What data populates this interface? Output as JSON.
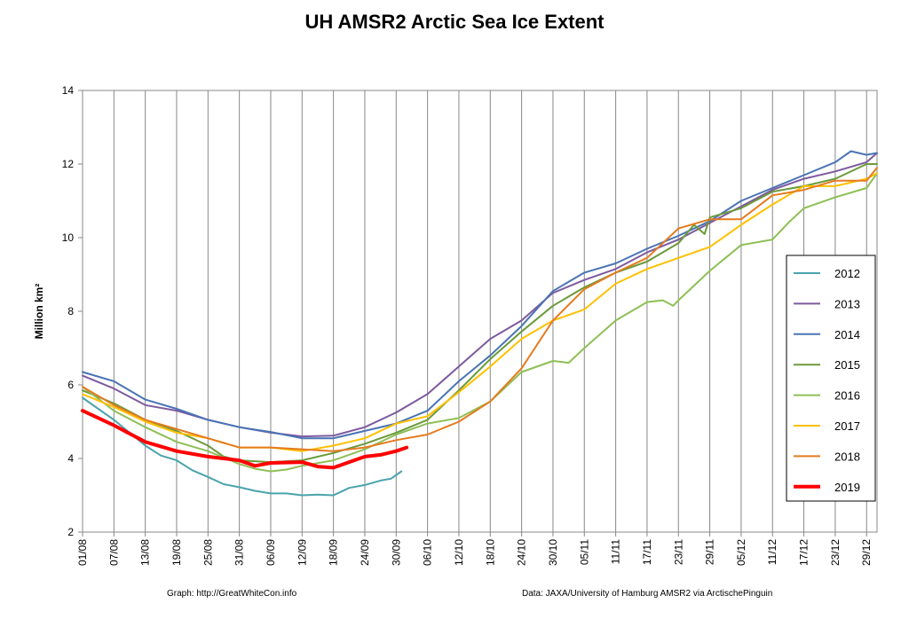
{
  "chart_data": {
    "type": "line",
    "title": "UH AMSR2 Arctic Sea Ice Extent",
    "xlabel": "",
    "ylabel": "Million km²",
    "ylim": [
      2,
      14
    ],
    "yticks": [
      2,
      4,
      6,
      8,
      10,
      12,
      14
    ],
    "x_range": [
      "01/08",
      "31/12"
    ],
    "x_ticks": [
      "01/08",
      "07/08",
      "13/08",
      "19/08",
      "25/08",
      "31/08",
      "06/09",
      "12/09",
      "18/09",
      "24/09",
      "30/09",
      "06/10",
      "12/10",
      "18/10",
      "24/10",
      "30/10",
      "05/11",
      "11/11",
      "17/11",
      "23/11",
      "29/11",
      "05/12",
      "11/12",
      "17/12",
      "23/12",
      "29/12"
    ],
    "grid": "vertical lines at each x tick",
    "legend_position": "right",
    "series": [
      {
        "name": "2012",
        "color": "#4aa3ad",
        "width": 2,
        "points": [
          [
            "01/08",
            5.65
          ],
          [
            "04/08",
            5.35
          ],
          [
            "07/08",
            5.05
          ],
          [
            "10/08",
            4.7
          ],
          [
            "13/08",
            4.35
          ],
          [
            "16/08",
            4.08
          ],
          [
            "19/08",
            3.95
          ],
          [
            "22/08",
            3.68
          ],
          [
            "25/08",
            3.5
          ],
          [
            "28/08",
            3.3
          ],
          [
            "31/08",
            3.22
          ],
          [
            "03/09",
            3.12
          ],
          [
            "06/09",
            3.05
          ],
          [
            "09/09",
            3.05
          ],
          [
            "12/09",
            3.0
          ],
          [
            "15/09",
            3.02
          ],
          [
            "18/09",
            3.0
          ],
          [
            "21/09",
            3.2
          ],
          [
            "24/09",
            3.28
          ],
          [
            "27/09",
            3.4
          ],
          [
            "29/09",
            3.45
          ],
          [
            "01/10",
            3.65
          ]
        ]
      },
      {
        "name": "2013",
        "color": "#7d5a9e",
        "width": 2,
        "points": [
          [
            "01/08",
            6.25
          ],
          [
            "07/08",
            5.9
          ],
          [
            "13/08",
            5.45
          ],
          [
            "19/08",
            5.3
          ],
          [
            "25/08",
            5.05
          ],
          [
            "31/08",
            4.85
          ],
          [
            "06/09",
            4.7
          ],
          [
            "12/09",
            4.6
          ],
          [
            "18/09",
            4.62
          ],
          [
            "24/09",
            4.85
          ],
          [
            "30/09",
            5.25
          ],
          [
            "06/10",
            5.75
          ],
          [
            "12/10",
            6.5
          ],
          [
            "18/10",
            7.25
          ],
          [
            "24/10",
            7.75
          ],
          [
            "30/10",
            8.5
          ],
          [
            "05/11",
            8.85
          ],
          [
            "11/11",
            9.15
          ],
          [
            "17/11",
            9.6
          ],
          [
            "23/11",
            9.95
          ],
          [
            "29/11",
            10.4
          ],
          [
            "05/12",
            10.85
          ],
          [
            "11/12",
            11.3
          ],
          [
            "17/12",
            11.6
          ],
          [
            "23/12",
            11.8
          ],
          [
            "29/12",
            12.05
          ],
          [
            "31/12",
            12.3
          ]
        ]
      },
      {
        "name": "2014",
        "color": "#4a74b4",
        "width": 2,
        "points": [
          [
            "01/08",
            6.35
          ],
          [
            "07/08",
            6.1
          ],
          [
            "13/08",
            5.6
          ],
          [
            "19/08",
            5.35
          ],
          [
            "25/08",
            5.05
          ],
          [
            "31/08",
            4.85
          ],
          [
            "06/09",
            4.72
          ],
          [
            "12/09",
            4.55
          ],
          [
            "18/09",
            4.55
          ],
          [
            "24/09",
            4.75
          ],
          [
            "30/09",
            4.95
          ],
          [
            "06/10",
            5.3
          ],
          [
            "12/10",
            6.1
          ],
          [
            "18/10",
            6.8
          ],
          [
            "24/10",
            7.6
          ],
          [
            "30/10",
            8.55
          ],
          [
            "05/11",
            9.05
          ],
          [
            "11/11",
            9.3
          ],
          [
            "17/11",
            9.7
          ],
          [
            "23/11",
            10.05
          ],
          [
            "29/11",
            10.45
          ],
          [
            "05/12",
            11.0
          ],
          [
            "11/12",
            11.35
          ],
          [
            "17/12",
            11.7
          ],
          [
            "23/12",
            12.05
          ],
          [
            "26/12",
            12.35
          ],
          [
            "29/12",
            12.25
          ],
          [
            "31/12",
            12.3
          ]
        ]
      },
      {
        "name": "2015",
        "color": "#6b9a3a",
        "width": 2,
        "points": [
          [
            "01/08",
            5.85
          ],
          [
            "07/08",
            5.5
          ],
          [
            "13/08",
            5.05
          ],
          [
            "19/08",
            4.75
          ],
          [
            "25/08",
            4.35
          ],
          [
            "28/08",
            4.05
          ],
          [
            "31/08",
            3.95
          ],
          [
            "06/09",
            3.9
          ],
          [
            "12/09",
            3.95
          ],
          [
            "18/09",
            4.15
          ],
          [
            "24/09",
            4.4
          ],
          [
            "30/09",
            4.7
          ],
          [
            "06/10",
            5.05
          ],
          [
            "12/10",
            5.85
          ],
          [
            "18/10",
            6.7
          ],
          [
            "24/10",
            7.45
          ],
          [
            "30/10",
            8.15
          ],
          [
            "05/11",
            8.65
          ],
          [
            "11/11",
            9.05
          ],
          [
            "17/11",
            9.35
          ],
          [
            "23/11",
            9.85
          ],
          [
            "26/11",
            10.35
          ],
          [
            "28/11",
            10.1
          ],
          [
            "29/11",
            10.55
          ],
          [
            "05/12",
            10.8
          ],
          [
            "11/12",
            11.25
          ],
          [
            "17/12",
            11.4
          ],
          [
            "23/12",
            11.6
          ],
          [
            "29/12",
            12.0
          ],
          [
            "31/12",
            12.0
          ]
        ]
      },
      {
        "name": "2016",
        "color": "#8ebf56",
        "width": 2,
        "points": [
          [
            "01/08",
            5.95
          ],
          [
            "07/08",
            5.3
          ],
          [
            "13/08",
            4.85
          ],
          [
            "19/08",
            4.45
          ],
          [
            "25/08",
            4.2
          ],
          [
            "31/08",
            3.85
          ],
          [
            "03/09",
            3.72
          ],
          [
            "06/09",
            3.65
          ],
          [
            "09/09",
            3.7
          ],
          [
            "12/09",
            3.8
          ],
          [
            "18/09",
            3.95
          ],
          [
            "24/09",
            4.25
          ],
          [
            "30/09",
            4.65
          ],
          [
            "06/10",
            4.95
          ],
          [
            "12/10",
            5.1
          ],
          [
            "18/10",
            5.55
          ],
          [
            "24/10",
            6.35
          ],
          [
            "30/10",
            6.65
          ],
          [
            "02/11",
            6.6
          ],
          [
            "05/11",
            7.0
          ],
          [
            "11/11",
            7.75
          ],
          [
            "17/11",
            8.25
          ],
          [
            "20/11",
            8.3
          ],
          [
            "22/11",
            8.15
          ],
          [
            "23/11",
            8.3
          ],
          [
            "29/11",
            9.1
          ],
          [
            "05/12",
            9.8
          ],
          [
            "11/12",
            9.95
          ],
          [
            "14/12",
            10.4
          ],
          [
            "17/12",
            10.8
          ],
          [
            "23/12",
            11.1
          ],
          [
            "29/12",
            11.35
          ],
          [
            "31/12",
            11.75
          ]
        ]
      },
      {
        "name": "2017",
        "color": "#ffc000",
        "width": 2,
        "points": [
          [
            "01/08",
            5.75
          ],
          [
            "07/08",
            5.4
          ],
          [
            "13/08",
            5.0
          ],
          [
            "19/08",
            4.7
          ],
          [
            "25/08",
            4.55
          ],
          [
            "31/08",
            4.3
          ],
          [
            "06/09",
            4.3
          ],
          [
            "12/09",
            4.2
          ],
          [
            "18/09",
            4.35
          ],
          [
            "24/09",
            4.55
          ],
          [
            "30/09",
            4.95
          ],
          [
            "06/10",
            5.15
          ],
          [
            "12/10",
            5.8
          ],
          [
            "18/10",
            6.5
          ],
          [
            "24/10",
            7.25
          ],
          [
            "30/10",
            7.75
          ],
          [
            "05/11",
            8.05
          ],
          [
            "11/11",
            8.75
          ],
          [
            "17/11",
            9.15
          ],
          [
            "23/11",
            9.45
          ],
          [
            "29/11",
            9.75
          ],
          [
            "05/12",
            10.35
          ],
          [
            "11/12",
            10.9
          ],
          [
            "17/12",
            11.4
          ],
          [
            "23/12",
            11.4
          ],
          [
            "29/12",
            11.6
          ],
          [
            "31/12",
            11.75
          ]
        ]
      },
      {
        "name": "2018",
        "color": "#e57b1f",
        "width": 2,
        "points": [
          [
            "01/08",
            5.95
          ],
          [
            "07/08",
            5.45
          ],
          [
            "13/08",
            5.05
          ],
          [
            "19/08",
            4.8
          ],
          [
            "25/08",
            4.55
          ],
          [
            "31/08",
            4.3
          ],
          [
            "06/09",
            4.3
          ],
          [
            "12/09",
            4.25
          ],
          [
            "18/09",
            4.2
          ],
          [
            "24/09",
            4.3
          ],
          [
            "30/09",
            4.5
          ],
          [
            "06/10",
            4.65
          ],
          [
            "12/10",
            5.0
          ],
          [
            "18/10",
            5.55
          ],
          [
            "24/10",
            6.45
          ],
          [
            "30/10",
            7.75
          ],
          [
            "05/11",
            8.6
          ],
          [
            "11/11",
            9.05
          ],
          [
            "17/11",
            9.45
          ],
          [
            "23/11",
            10.25
          ],
          [
            "29/11",
            10.5
          ],
          [
            "05/12",
            10.5
          ],
          [
            "11/12",
            11.15
          ],
          [
            "17/12",
            11.3
          ],
          [
            "23/12",
            11.55
          ],
          [
            "29/12",
            11.55
          ],
          [
            "31/12",
            11.9
          ]
        ]
      },
      {
        "name": "2019",
        "color": "#ff0000",
        "width": 4,
        "points": [
          [
            "01/08",
            5.3
          ],
          [
            "07/08",
            4.9
          ],
          [
            "13/08",
            4.45
          ],
          [
            "19/08",
            4.2
          ],
          [
            "25/08",
            4.05
          ],
          [
            "31/08",
            3.95
          ],
          [
            "03/09",
            3.8
          ],
          [
            "06/09",
            3.88
          ],
          [
            "12/09",
            3.9
          ],
          [
            "15/09",
            3.78
          ],
          [
            "18/09",
            3.75
          ],
          [
            "21/09",
            3.9
          ],
          [
            "24/09",
            4.05
          ],
          [
            "27/09",
            4.1
          ],
          [
            "30/09",
            4.2
          ],
          [
            "02/10",
            4.3
          ]
        ]
      }
    ]
  },
  "credits": {
    "left": "Graph: http://GreatWhiteCon.info",
    "right": "Data: JAXA/University of Hamburg AMSR2 via ArctischePinguin"
  }
}
